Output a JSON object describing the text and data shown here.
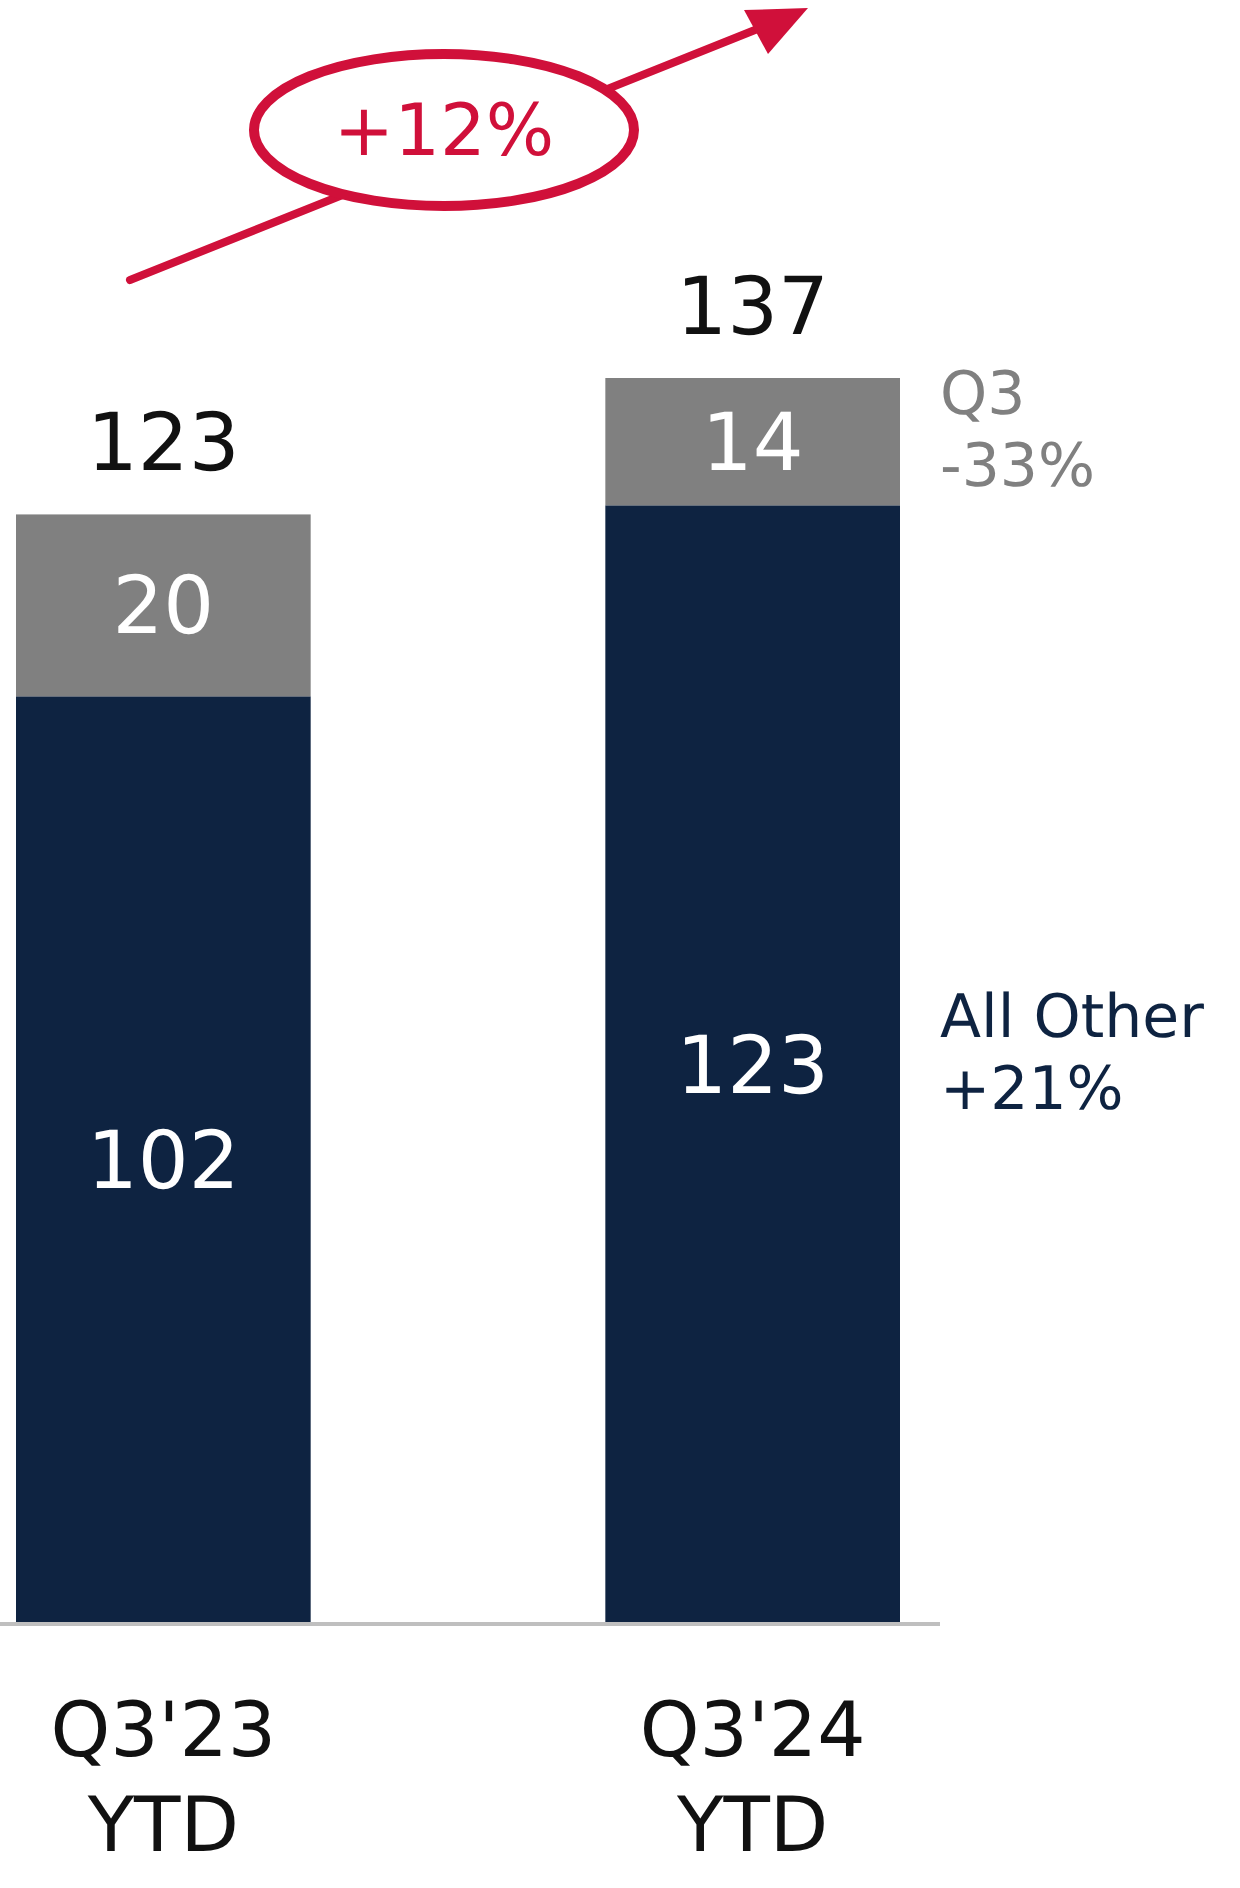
{
  "chart_data": {
    "type": "bar",
    "stacked": true,
    "categories": [
      "Q3'23\nYTD",
      "Q3'24\nYTD"
    ],
    "series": [
      {
        "name": "All Other +21%",
        "color": "#0e2341",
        "values": [
          102,
          123
        ]
      },
      {
        "name": "Q3 -33%",
        "color": "#808080",
        "values": [
          20,
          14
        ]
      }
    ],
    "data_labels": true,
    "totals": [
      "123",
      "137"
    ],
    "legend": false,
    "annotations": [
      "+12%"
    ]
  }
}
